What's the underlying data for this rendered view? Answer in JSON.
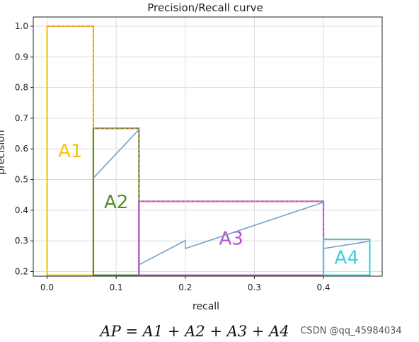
{
  "chart_data": {
    "type": "line",
    "title": "Precision/Recall curve",
    "xlabel": "recall",
    "ylabel": "precision",
    "xlim": [
      -0.02,
      0.485
    ],
    "ylim": [
      0.185,
      1.03
    ],
    "xticks": [
      0.0,
      0.1,
      0.2,
      0.3,
      0.4
    ],
    "xtick_labels": [
      "0.0",
      "0.1",
      "0.2",
      "0.3",
      "0.4"
    ],
    "yticks": [
      0.2,
      0.3,
      0.4,
      0.5,
      0.6,
      0.7,
      0.8,
      0.9,
      1.0
    ],
    "ytick_labels": [
      "0.2",
      "0.3",
      "0.4",
      "0.5",
      "0.6",
      "0.7",
      "0.8",
      "0.9",
      "1.0"
    ],
    "grid": true,
    "series": [
      {
        "color": "#6fa3d0",
        "points": [
          [
            0.067,
            0.505
          ],
          [
            0.133,
            0.663
          ],
          [
            0.133,
            0.222
          ],
          [
            0.2,
            0.301
          ],
          [
            0.2,
            0.275
          ],
          [
            0.4,
            0.426
          ],
          [
            0.4,
            0.275
          ],
          [
            0.467,
            0.299
          ]
        ]
      }
    ],
    "regions": [
      {
        "label": "A1",
        "x0": 0.0,
        "x1": 0.067,
        "y": 1.0,
        "color": "#f5c518"
      },
      {
        "label": "A2",
        "x0": 0.067,
        "x1": 0.133,
        "y": 0.667,
        "color": "#4f8f2e"
      },
      {
        "label": "A3",
        "x0": 0.133,
        "x1": 0.4,
        "y": 0.429,
        "color": "#b84fd1"
      },
      {
        "label": "A4",
        "x0": 0.4,
        "x1": 0.467,
        "y": 0.305,
        "color": "#3fd0e0"
      }
    ],
    "interpolated_envelope": [
      [
        0.0,
        1.0
      ],
      [
        0.067,
        1.0
      ],
      [
        0.067,
        0.667
      ],
      [
        0.133,
        0.667
      ],
      [
        0.133,
        0.429
      ],
      [
        0.4,
        0.429
      ],
      [
        0.4,
        0.305
      ],
      [
        0.467,
        0.305
      ]
    ],
    "envelope_color": "#d98a6a"
  },
  "formula": "AP = A1 + A2 + A3 + A4",
  "watermark": "CSDN @qq_45984034"
}
